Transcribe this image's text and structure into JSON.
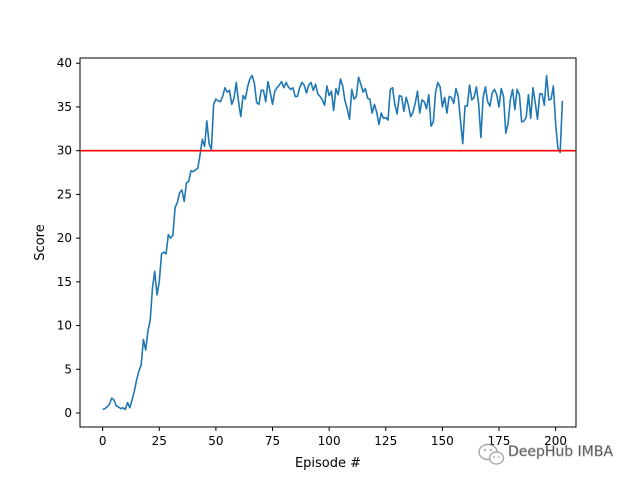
{
  "chart_data": {
    "type": "line",
    "title": "",
    "xlabel": "Episode #",
    "ylabel": "Score",
    "xlim": [
      -10,
      209
    ],
    "ylim": [
      -1.6,
      40.6
    ],
    "x_ticks": [
      0,
      25,
      50,
      75,
      100,
      125,
      150,
      175,
      200
    ],
    "y_ticks": [
      0,
      5,
      10,
      15,
      20,
      25,
      30,
      35,
      40
    ],
    "grid": false,
    "legend": "none",
    "series": [
      {
        "color": "#1f77b4",
        "values": [
          0.4,
          0.5,
          0.7,
          1.0,
          1.7,
          1.5,
          0.8,
          0.7,
          0.5,
          0.6,
          0.4,
          1.2,
          0.6,
          1.5,
          2.5,
          3.8,
          4.8,
          5.5,
          8.4,
          7.2,
          9.4,
          10.6,
          14.3,
          16.2,
          13.5,
          15.0,
          18.2,
          18.4,
          18.2,
          20.4,
          20.0,
          20.3,
          23.5,
          24.1,
          25.2,
          25.5,
          24.2,
          26.3,
          26.5,
          27.7,
          27.6,
          27.8,
          28.0,
          29.5,
          31.3,
          30.5,
          33.4,
          30.8,
          30.1,
          35.3,
          35.9,
          35.7,
          35.6,
          36.2,
          37.2,
          36.7,
          36.9,
          35.3,
          36.0,
          37.8,
          35.6,
          33.9,
          36.3,
          35.9,
          37.3,
          38.2,
          38.6,
          37.7,
          35.5,
          35.3,
          36.9,
          36.9,
          35.6,
          37.9,
          36.7,
          35.3,
          36.8,
          37.2,
          37.5,
          37.9,
          37.2,
          37.8,
          37.3,
          37.0,
          37.2,
          36.2,
          36.2,
          37.2,
          37.8,
          37.5,
          36.6,
          37.5,
          37.8,
          36.9,
          37.6,
          36.5,
          36.2,
          35.8,
          35.2,
          37.4,
          36.3,
          36.8,
          34.6,
          37.1,
          36.4,
          38.2,
          37.4,
          35.7,
          34.8,
          33.6,
          37.0,
          35.9,
          36.2,
          38.4,
          37.6,
          36.7,
          37.1,
          36.0,
          35.9,
          34.3,
          35.3,
          34.4,
          33.0,
          34.3,
          33.7,
          33.8,
          33.5,
          37.0,
          37.2,
          35.3,
          34.2,
          36.3,
          36.2,
          34.5,
          36.1,
          35.2,
          33.9,
          34.4,
          35.4,
          36.8,
          34.3,
          35.8,
          35.6,
          34.8,
          36.4,
          32.8,
          33.3,
          36.7,
          37.8,
          37.3,
          35.0,
          36.1,
          34.3,
          36.2,
          36.1,
          35.4,
          37.1,
          36.2,
          33.4,
          30.8,
          35.1,
          35.1,
          37.5,
          35.8,
          36.1,
          37.3,
          35.4,
          31.5,
          36.1,
          37.3,
          35.6,
          35.1,
          36.6,
          37.0,
          36.4,
          35.0,
          37.1,
          36.2,
          32.0,
          33.1,
          35.8,
          37.0,
          34.7,
          37.0,
          36.4,
          33.3,
          33.4,
          33.8,
          36.4,
          33.7,
          37.2,
          35.5,
          33.6,
          36.5,
          36.5,
          35.2,
          38.6,
          35.8,
          35.9,
          37.4,
          33.1,
          30.3,
          29.8,
          35.7
        ]
      }
    ],
    "annotations": [
      {
        "type": "hline",
        "y": 30,
        "color": "#ff0000"
      }
    ]
  },
  "watermark": {
    "text": "DeepHub IMBA",
    "icon": "wechat-icon"
  }
}
